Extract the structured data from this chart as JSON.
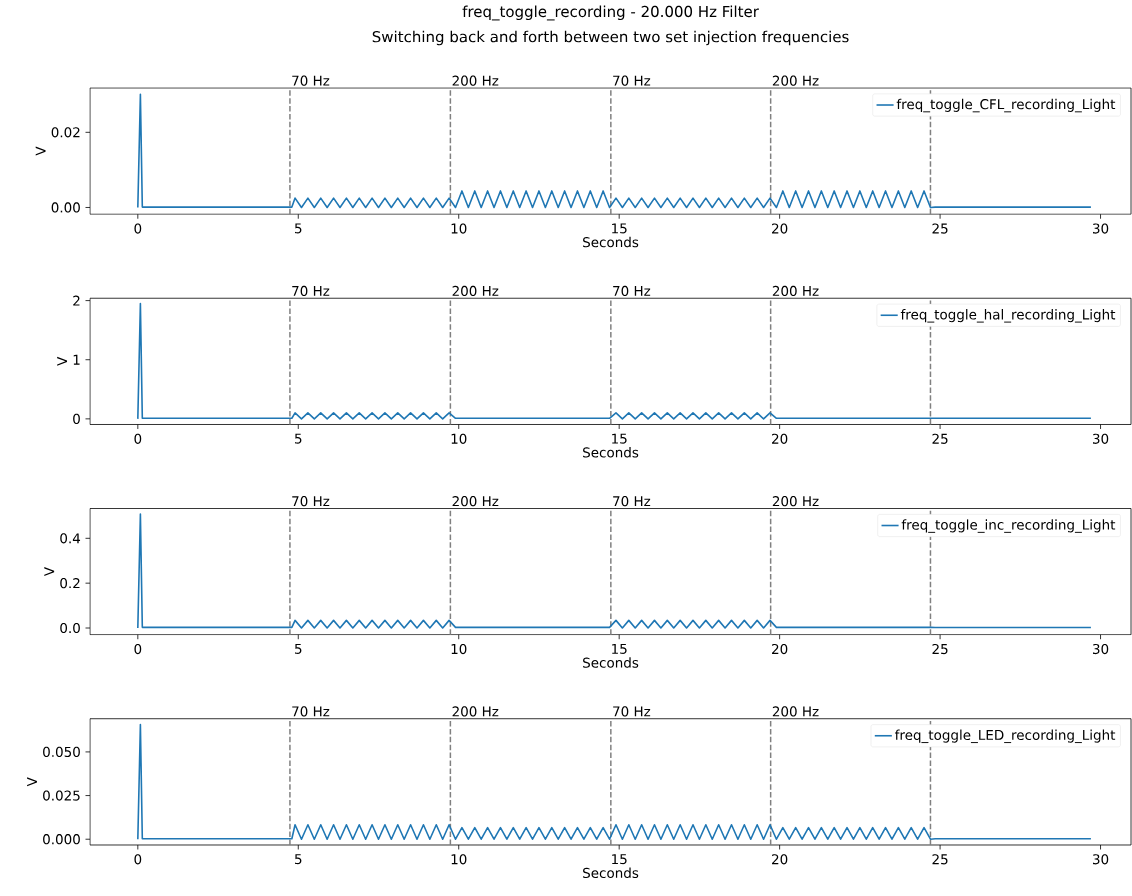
{
  "chart_data": [
    {
      "type": "line",
      "title": "freq_toggle_recording - 20.000 Hz Filter",
      "subtitle": "Switching back and forth between two set injection frequencies",
      "xlabel": "Seconds",
      "ylabel": "V",
      "marker": "none",
      "legend": "top right",
      "xlim": [
        -1.49,
        30.95
      ],
      "ylim": [
        -0.0018,
        0.0318
      ],
      "xticks": [
        0,
        5,
        10,
        15,
        20,
        25,
        30
      ],
      "yticks": [
        {
          "value": 0,
          "label": "0.00"
        },
        {
          "value": 0.02,
          "label": "0.02"
        }
      ],
      "x": [
        0,
        0.08,
        0.14,
        1,
        2,
        3,
        4,
        4.8,
        4.9,
        5.1,
        5.3,
        5.5,
        5.7,
        5.9,
        6.1,
        6.3,
        6.5,
        6.7,
        6.9,
        7.1,
        7.3,
        7.5,
        7.7,
        7.9,
        8.1,
        8.3,
        8.5,
        8.7,
        8.9,
        9.1,
        9.3,
        9.5,
        9.7,
        9.9,
        10.1,
        10.3,
        10.5,
        10.7,
        10.9,
        11.1,
        11.3,
        11.5,
        11.7,
        11.9,
        12.1,
        12.3,
        12.5,
        12.7,
        12.9,
        13.1,
        13.3,
        13.5,
        13.7,
        13.9,
        14.1,
        14.3,
        14.5,
        14.7,
        14.9,
        15.1,
        15.3,
        15.5,
        15.7,
        15.9,
        16.1,
        16.3,
        16.5,
        16.7,
        16.9,
        17.1,
        17.3,
        17.5,
        17.7,
        17.9,
        18.1,
        18.3,
        18.5,
        18.7,
        18.9,
        19.1,
        19.3,
        19.5,
        19.7,
        19.9,
        20.1,
        20.3,
        20.5,
        20.7,
        20.9,
        21.1,
        21.3,
        21.5,
        21.7,
        21.9,
        22.1,
        22.3,
        22.5,
        22.7,
        22.9,
        23.1,
        23.3,
        23.5,
        23.7,
        23.9,
        24.1,
        24.3,
        24.5,
        24.7,
        24.85,
        25.5,
        26.5,
        27.5,
        28.5,
        29.7
      ],
      "series": [
        {
          "name": "freq_toggle_CFL_recording_Light",
          "color": "#1f77b4",
          "values": [
            0,
            0.0301,
            0.0001,
            0.0001,
            0.0001,
            0.0001,
            0.0001,
            0.0001,
            0.0025,
            0,
            0.0025,
            0,
            0.0025,
            0,
            0.0025,
            0,
            0.0025,
            0,
            0.0025,
            0,
            0.0025,
            0,
            0.0025,
            0,
            0.0025,
            0,
            0.0025,
            0,
            0.0025,
            0,
            0.0025,
            0,
            0.0025,
            0,
            0.0044,
            0,
            0.0044,
            0,
            0.0044,
            0,
            0.0044,
            0,
            0.0044,
            0,
            0.0044,
            0,
            0.0044,
            0,
            0.0044,
            0,
            0.0044,
            0,
            0.0044,
            0,
            0.0044,
            0,
            0.0044,
            0,
            0.0025,
            0,
            0.0025,
            0,
            0.0025,
            0,
            0.0025,
            0,
            0.0025,
            0,
            0.0025,
            0,
            0.0025,
            0,
            0.0025,
            0,
            0.0025,
            0,
            0.0025,
            0,
            0.0025,
            0,
            0.0025,
            0,
            0.0025,
            0,
            0.0044,
            0,
            0.0044,
            0,
            0.0044,
            0,
            0.0044,
            0,
            0.0044,
            0,
            0.0044,
            0,
            0.0044,
            0,
            0.0044,
            0,
            0.0044,
            0,
            0.0044,
            0,
            0.0044,
            0,
            0.0044,
            0,
            0.0001,
            0.0001,
            0.0001,
            0.0001,
            0.0001,
            0.0001
          ]
        }
      ],
      "ref_lines": [
        {
          "axis": "x",
          "value": 4.74,
          "label": "70 Hz",
          "color": "#808080",
          "line_style": "dashed"
        },
        {
          "axis": "x",
          "value": 9.74,
          "label": "200 Hz",
          "color": "#808080",
          "line_style": "dashed"
        },
        {
          "axis": "x",
          "value": 14.74,
          "label": "70 Hz",
          "color": "#808080",
          "line_style": "dashed"
        },
        {
          "axis": "x",
          "value": 19.72,
          "label": "200 Hz",
          "color": "#808080",
          "line_style": "dashed"
        },
        {
          "axis": "x",
          "value": 24.7,
          "color": "#808080",
          "line_style": "dashed"
        }
      ]
    },
    {
      "type": "line",
      "xlabel": "Seconds",
      "ylabel": "V",
      "marker": "none",
      "legend": "top right",
      "xlim": [
        -1.49,
        30.95
      ],
      "ylim": [
        -0.095,
        2.04
      ],
      "xticks": [
        0,
        5,
        10,
        15,
        20,
        25,
        30
      ],
      "yticks": [
        0,
        1,
        2
      ],
      "x": [
        0,
        0.08,
        0.14,
        1,
        2,
        3,
        4,
        4.8,
        4.9,
        5.1,
        5.3,
        5.5,
        5.7,
        5.9,
        6.1,
        6.3,
        6.5,
        6.7,
        6.9,
        7.1,
        7.3,
        7.5,
        7.7,
        7.9,
        8.1,
        8.3,
        8.5,
        8.7,
        8.9,
        9.1,
        9.3,
        9.5,
        9.7,
        9.9,
        10.1,
        10.3,
        10.5,
        10.7,
        10.9,
        11.1,
        11.3,
        11.5,
        11.7,
        11.9,
        12.1,
        12.3,
        12.5,
        12.7,
        12.9,
        13.1,
        13.3,
        13.5,
        13.7,
        13.9,
        14.1,
        14.3,
        14.5,
        14.7,
        14.9,
        15.1,
        15.3,
        15.5,
        15.7,
        15.9,
        16.1,
        16.3,
        16.5,
        16.7,
        16.9,
        17.1,
        17.3,
        17.5,
        17.7,
        17.9,
        18.1,
        18.3,
        18.5,
        18.7,
        18.9,
        19.1,
        19.3,
        19.5,
        19.7,
        19.9,
        20.1,
        20.3,
        20.5,
        20.7,
        20.9,
        21.1,
        21.3,
        21.5,
        21.7,
        21.9,
        22.1,
        22.3,
        22.5,
        22.7,
        22.9,
        23.1,
        23.3,
        23.5,
        23.7,
        23.9,
        24.1,
        24.3,
        24.5,
        24.7,
        24.85,
        25.5,
        26.5,
        27.5,
        28.5,
        29.7
      ],
      "series": [
        {
          "name": "freq_toggle_hal_recording_Light",
          "color": "#1f77b4",
          "values": [
            0,
            1.95,
            0.01,
            0.01,
            0.01,
            0.01,
            0.01,
            0.01,
            0.1,
            0,
            0.1,
            0,
            0.1,
            0,
            0.1,
            0,
            0.1,
            0,
            0.1,
            0,
            0.1,
            0,
            0.1,
            0,
            0.1,
            0,
            0.1,
            0,
            0.1,
            0,
            0.1,
            0,
            0.1,
            0.01,
            0.01,
            0.01,
            0.01,
            0.01,
            0.01,
            0.01,
            0.01,
            0.01,
            0.01,
            0.01,
            0.01,
            0.01,
            0.01,
            0.01,
            0.01,
            0.01,
            0.01,
            0.01,
            0.01,
            0.01,
            0.01,
            0.01,
            0.01,
            0.01,
            0.1,
            0,
            0.1,
            0,
            0.1,
            0,
            0.1,
            0,
            0.1,
            0,
            0.1,
            0,
            0.1,
            0,
            0.1,
            0,
            0.1,
            0,
            0.1,
            0,
            0.1,
            0,
            0.1,
            0,
            0.1,
            0.01,
            0.01,
            0.01,
            0.01,
            0.01,
            0.01,
            0.01,
            0.01,
            0.01,
            0.01,
            0.01,
            0.01,
            0.01,
            0.01,
            0.01,
            0.01,
            0.01,
            0.01,
            0.01,
            0.01,
            0.01,
            0.01,
            0.01,
            0.01,
            0.01,
            0.01,
            0.01,
            0.01,
            0.01,
            0.01,
            0.01
          ]
        }
      ],
      "ref_lines": [
        {
          "axis": "x",
          "value": 4.74,
          "label": "70 Hz",
          "color": "#808080",
          "line_style": "dashed"
        },
        {
          "axis": "x",
          "value": 9.74,
          "label": "200 Hz",
          "color": "#808080",
          "line_style": "dashed"
        },
        {
          "axis": "x",
          "value": 14.74,
          "label": "70 Hz",
          "color": "#808080",
          "line_style": "dashed"
        },
        {
          "axis": "x",
          "value": 19.72,
          "label": "200 Hz",
          "color": "#808080",
          "line_style": "dashed"
        },
        {
          "axis": "x",
          "value": 24.7,
          "color": "#808080",
          "line_style": "dashed"
        }
      ]
    },
    {
      "type": "line",
      "xlabel": "Seconds",
      "ylabel": "V",
      "marker": "none",
      "legend": "top right",
      "xlim": [
        -1.49,
        30.95
      ],
      "ylim": [
        -0.03,
        0.533
      ],
      "xticks": [
        0,
        5,
        10,
        15,
        20,
        25,
        30
      ],
      "yticks": [
        {
          "value": 0,
          "label": "0.0"
        },
        {
          "value": 0.2,
          "label": "0.2"
        },
        {
          "value": 0.4,
          "label": "0.4"
        }
      ],
      "x": [
        0,
        0.08,
        0.14,
        1,
        2,
        3,
        4,
        4.8,
        4.9,
        5.1,
        5.3,
        5.5,
        5.7,
        5.9,
        6.1,
        6.3,
        6.5,
        6.7,
        6.9,
        7.1,
        7.3,
        7.5,
        7.7,
        7.9,
        8.1,
        8.3,
        8.5,
        8.7,
        8.9,
        9.1,
        9.3,
        9.5,
        9.7,
        9.9,
        10.1,
        10.3,
        10.5,
        10.7,
        10.9,
        11.1,
        11.3,
        11.5,
        11.7,
        11.9,
        12.1,
        12.3,
        12.5,
        12.7,
        12.9,
        13.1,
        13.3,
        13.5,
        13.7,
        13.9,
        14.1,
        14.3,
        14.5,
        14.7,
        14.9,
        15.1,
        15.3,
        15.5,
        15.7,
        15.9,
        16.1,
        16.3,
        16.5,
        16.7,
        16.9,
        17.1,
        17.3,
        17.5,
        17.7,
        17.9,
        18.1,
        18.3,
        18.5,
        18.7,
        18.9,
        19.1,
        19.3,
        19.5,
        19.7,
        19.9,
        20.1,
        20.3,
        20.5,
        20.7,
        20.9,
        21.1,
        21.3,
        21.5,
        21.7,
        21.9,
        22.1,
        22.3,
        22.5,
        22.7,
        22.9,
        23.1,
        23.3,
        23.5,
        23.7,
        23.9,
        24.1,
        24.3,
        24.5,
        24.7,
        24.85,
        25.5,
        26.5,
        27.5,
        28.5,
        29.7
      ],
      "series": [
        {
          "name": "freq_toggle_inc_recording_Light",
          "color": "#1f77b4",
          "values": [
            0,
            0.508,
            0.003,
            0.003,
            0.003,
            0.003,
            0.003,
            0.003,
            0.034,
            0,
            0.034,
            0,
            0.034,
            0,
            0.034,
            0,
            0.034,
            0,
            0.034,
            0,
            0.034,
            0,
            0.034,
            0,
            0.034,
            0,
            0.034,
            0,
            0.034,
            0,
            0.034,
            0,
            0.034,
            0.003,
            0.003,
            0.003,
            0.003,
            0.003,
            0.003,
            0.003,
            0.003,
            0.003,
            0.003,
            0.003,
            0.003,
            0.003,
            0.003,
            0.003,
            0.003,
            0.003,
            0.003,
            0.003,
            0.003,
            0.003,
            0.003,
            0.003,
            0.003,
            0.003,
            0.034,
            0,
            0.034,
            0,
            0.034,
            0,
            0.034,
            0,
            0.034,
            0,
            0.034,
            0,
            0.034,
            0,
            0.034,
            0,
            0.034,
            0,
            0.034,
            0,
            0.034,
            0,
            0.034,
            0,
            0.034,
            0.003,
            0.003,
            0.003,
            0.003,
            0.003,
            0.003,
            0.003,
            0.003,
            0.003,
            0.003,
            0.003,
            0.003,
            0.003,
            0.003,
            0.003,
            0.003,
            0.003,
            0.003,
            0.003,
            0.003,
            0.003,
            0.003,
            0.003,
            0.003,
            0.003,
            0.002,
            0.002,
            0.002,
            0.002,
            0.002,
            0.002
          ]
        }
      ],
      "ref_lines": [
        {
          "axis": "x",
          "value": 4.74,
          "label": "70 Hz",
          "color": "#808080",
          "line_style": "dashed"
        },
        {
          "axis": "x",
          "value": 9.74,
          "label": "200 Hz",
          "color": "#808080",
          "line_style": "dashed"
        },
        {
          "axis": "x",
          "value": 14.74,
          "label": "70 Hz",
          "color": "#808080",
          "line_style": "dashed"
        },
        {
          "axis": "x",
          "value": 19.72,
          "label": "200 Hz",
          "color": "#808080",
          "line_style": "dashed"
        },
        {
          "axis": "x",
          "value": 24.7,
          "color": "#808080",
          "line_style": "dashed"
        }
      ]
    },
    {
      "type": "line",
      "xlabel": "Seconds",
      "ylabel": "V",
      "marker": "none",
      "legend": "top right",
      "xlim": [
        -1.49,
        30.95
      ],
      "ylim": [
        -0.0033,
        0.069
      ],
      "xticks": [
        0,
        5,
        10,
        15,
        20,
        25,
        30
      ],
      "yticks": [
        {
          "value": 0,
          "label": "0.000"
        },
        {
          "value": 0.025,
          "label": "0.025"
        },
        {
          "value": 0.05,
          "label": "0.050"
        }
      ],
      "x": [
        0,
        0.08,
        0.14,
        1,
        2,
        3,
        4,
        4.8,
        4.9,
        5.1,
        5.3,
        5.5,
        5.7,
        5.9,
        6.1,
        6.3,
        6.5,
        6.7,
        6.9,
        7.1,
        7.3,
        7.5,
        7.7,
        7.9,
        8.1,
        8.3,
        8.5,
        8.7,
        8.9,
        9.1,
        9.3,
        9.5,
        9.7,
        9.9,
        10.1,
        10.3,
        10.5,
        10.7,
        10.9,
        11.1,
        11.3,
        11.5,
        11.7,
        11.9,
        12.1,
        12.3,
        12.5,
        12.7,
        12.9,
        13.1,
        13.3,
        13.5,
        13.7,
        13.9,
        14.1,
        14.3,
        14.5,
        14.7,
        14.9,
        15.1,
        15.3,
        15.5,
        15.7,
        15.9,
        16.1,
        16.3,
        16.5,
        16.7,
        16.9,
        17.1,
        17.3,
        17.5,
        17.7,
        17.9,
        18.1,
        18.3,
        18.5,
        18.7,
        18.9,
        19.1,
        19.3,
        19.5,
        19.7,
        19.9,
        20.1,
        20.3,
        20.5,
        20.7,
        20.9,
        21.1,
        21.3,
        21.5,
        21.7,
        21.9,
        22.1,
        22.3,
        22.5,
        22.7,
        22.9,
        23.1,
        23.3,
        23.5,
        23.7,
        23.9,
        24.1,
        24.3,
        24.5,
        24.7,
        24.85,
        25.5,
        26.5,
        27.5,
        28.5,
        29.7
      ],
      "series": [
        {
          "name": "freq_toggle_LED_recording_Light",
          "color": "#1f77b4",
          "values": [
            0,
            0.0657,
            0.0003,
            0.0003,
            0.0003,
            0.0003,
            0.0003,
            0.0003,
            0.0083,
            0,
            0.0083,
            0,
            0.0083,
            0,
            0.0083,
            0,
            0.0083,
            0,
            0.0083,
            0,
            0.0083,
            0,
            0.0083,
            0,
            0.0083,
            0,
            0.0083,
            0,
            0.0083,
            0,
            0.0083,
            0,
            0.0083,
            0,
            0.0066,
            0,
            0.0066,
            0,
            0.0066,
            0,
            0.0066,
            0,
            0.0066,
            0,
            0.0066,
            0,
            0.0066,
            0,
            0.0066,
            0,
            0.0066,
            0,
            0.0066,
            0,
            0.0066,
            0,
            0.0066,
            0,
            0.0083,
            0,
            0.0083,
            0,
            0.0083,
            0,
            0.0083,
            0,
            0.0083,
            0,
            0.0083,
            0,
            0.0083,
            0,
            0.0083,
            0,
            0.0083,
            0,
            0.0083,
            0,
            0.0083,
            0,
            0.0083,
            0,
            0.0083,
            0,
            0.0066,
            0,
            0.0066,
            0,
            0.0066,
            0,
            0.0066,
            0,
            0.0066,
            0,
            0.0066,
            0,
            0.0066,
            0,
            0.0066,
            0,
            0.0066,
            0,
            0.0066,
            0,
            0.0066,
            0,
            0.0066,
            0,
            0.0003,
            0.0003,
            0.0003,
            0.0003,
            0.0003,
            0.0003
          ]
        }
      ],
      "ref_lines": [
        {
          "axis": "x",
          "value": 4.74,
          "label": "70 Hz",
          "color": "#808080",
          "line_style": "dashed"
        },
        {
          "axis": "x",
          "value": 9.74,
          "label": "200 Hz",
          "color": "#808080",
          "line_style": "dashed"
        },
        {
          "axis": "x",
          "value": 14.74,
          "label": "70 Hz",
          "color": "#808080",
          "line_style": "dashed"
        },
        {
          "axis": "x",
          "value": 19.72,
          "label": "200 Hz",
          "color": "#808080",
          "line_style": "dashed"
        },
        {
          "axis": "x",
          "value": 24.7,
          "color": "#808080",
          "line_style": "dashed"
        }
      ]
    }
  ]
}
